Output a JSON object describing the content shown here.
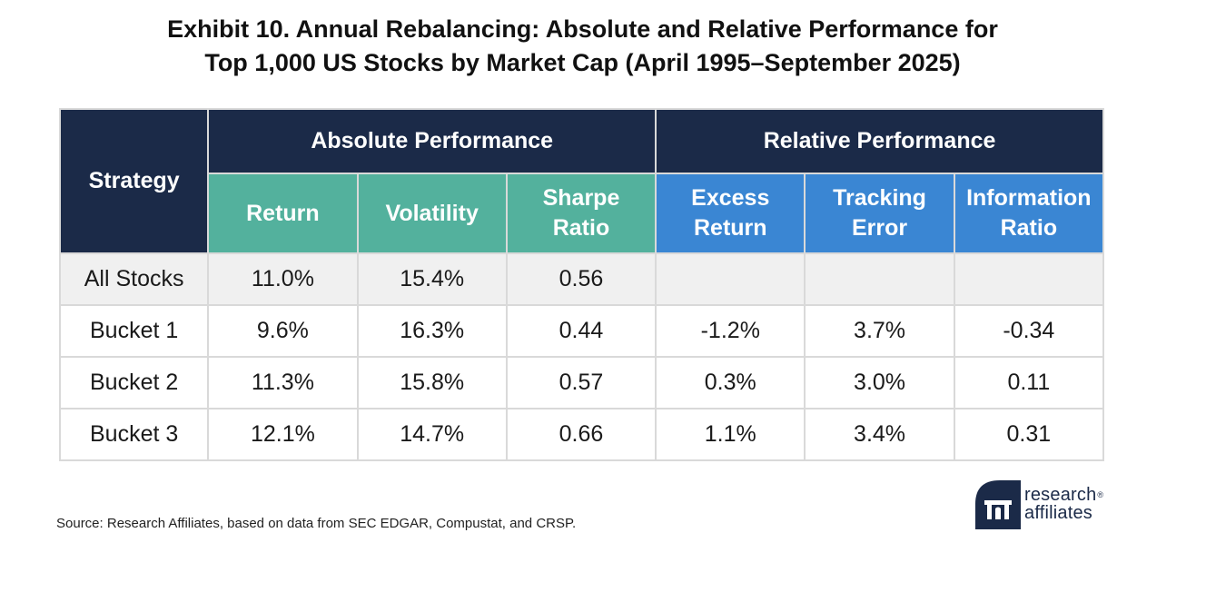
{
  "title": {
    "line1": "Exhibit 10. Annual Rebalancing: Absolute and Relative Performance for",
    "line2": "Top 1,000 US Stocks by Market Cap (April 1995–September 2025)"
  },
  "table": {
    "strategy_header": "Strategy",
    "group_absolute": "Absolute Performance",
    "group_relative": "Relative Performance",
    "columns": {
      "return": "Return",
      "volatility": "Volatility",
      "sharpe_l1": "Sharpe",
      "sharpe_l2": "Ratio",
      "excess_l1": "Excess",
      "excess_l2": "Return",
      "tracking_l1": "Tracking",
      "tracking_l2": "Error",
      "info_l1": "Information",
      "info_l2": "Ratio"
    },
    "rows": [
      {
        "strategy": "All Stocks",
        "return": "11.0%",
        "volatility": "15.4%",
        "sharpe": "0.56",
        "excess": "",
        "tracking": "",
        "info": ""
      },
      {
        "strategy": "Bucket 1",
        "return": "9.6%",
        "volatility": "16.3%",
        "sharpe": "0.44",
        "excess": "-1.2%",
        "tracking": "3.7%",
        "info": "-0.34"
      },
      {
        "strategy": "Bucket 2",
        "return": "11.3%",
        "volatility": "15.8%",
        "sharpe": "0.57",
        "excess": "0.3%",
        "tracking": "3.0%",
        "info": "0.11"
      },
      {
        "strategy": "Bucket 3",
        "return": "12.1%",
        "volatility": "14.7%",
        "sharpe": "0.66",
        "excess": "1.1%",
        "tracking": "3.4%",
        "info": "0.31"
      }
    ]
  },
  "source": "Source: Research Affiliates, based on data from SEC EDGAR, Compustat, and CRSP.",
  "logo": {
    "line1": "research",
    "line2": "affiliates",
    "reg": "®"
  },
  "colors": {
    "header_dark": "#1b2a48",
    "header_teal": "#53b19d",
    "header_blue": "#3a86d3",
    "row_shaded": "#f0f0f0"
  }
}
